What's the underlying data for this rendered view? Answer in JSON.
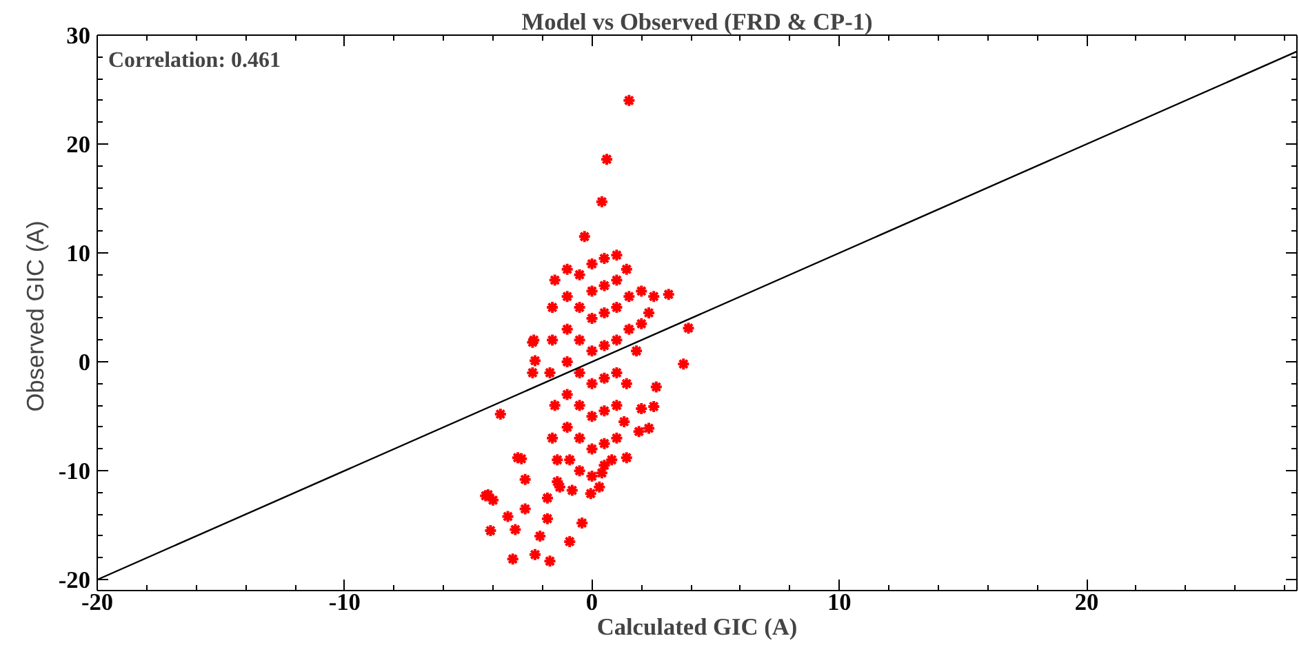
{
  "chart_data": {
    "type": "scatter",
    "title": "Model vs Observed (FRD & CP-1)",
    "xlabel": "Calculated GIC (A)",
    "ylabel": "Observed GIC  (A)",
    "annotations": [
      "Correlation: 0.461"
    ],
    "xlim": [
      -20,
      28.5
    ],
    "ylim": [
      -21,
      30
    ],
    "xticks": [
      -20,
      -10,
      0,
      10,
      20
    ],
    "yticks": [
      -20,
      -10,
      0,
      10,
      20,
      30
    ],
    "grid": false,
    "series": [
      {
        "color": "#ff0000",
        "marker": "cross",
        "x": [
          1.5,
          0.6,
          0.4,
          -0.3,
          3.1,
          3.9,
          3.7,
          2.6,
          2.5,
          2.0,
          2.3,
          1.9,
          1.4,
          0.4,
          0.3,
          -2.4,
          -2.3,
          -2.4,
          -3.7,
          -2.85,
          -2.7,
          -4.3,
          -4.0,
          -4.1,
          -3.4,
          -3.1,
          -2.7,
          -3.2,
          -2.1,
          -2.3,
          -1.7,
          -1.8,
          -1.4,
          -0.9,
          -0.4,
          -0.05,
          -3.0,
          -4.2,
          -2.35,
          -1.5,
          -1.6,
          -1.6,
          -1.7,
          -1.5,
          -1.6,
          -1.4,
          -1.3,
          -1.8,
          -1.0,
          -1.0,
          -1.0,
          -1.0,
          -1.0,
          -1.0,
          -0.9,
          -0.8,
          -0.5,
          -0.5,
          -0.5,
          -0.5,
          -0.5,
          -0.5,
          -0.5,
          0,
          0,
          0,
          0,
          0,
          0,
          0,
          0,
          0.5,
          0.5,
          0.5,
          0.5,
          0.5,
          0.5,
          0.5,
          0.5,
          1.0,
          1.0,
          1.0,
          1.0,
          1.0,
          1.0,
          1.0,
          0.8,
          1.4,
          1.5,
          1.5,
          1.4,
          1.3,
          2.0,
          2.5,
          2.3,
          2.0,
          1.8
        ],
        "values": [
          24.0,
          18.6,
          14.7,
          11.5,
          6.2,
          3.1,
          -0.2,
          -2.3,
          -4.1,
          -4.3,
          -6.1,
          -6.4,
          -8.8,
          -10.2,
          -11.5,
          1.8,
          0.1,
          -1.0,
          -4.8,
          -8.9,
          -10.8,
          -12.3,
          -12.7,
          -15.5,
          -14.2,
          -15.4,
          -13.5,
          -18.1,
          -16.0,
          -17.7,
          -18.3,
          -14.4,
          -11.0,
          -16.5,
          -14.8,
          -12.1,
          -8.8,
          -12.2,
          2.0,
          7.5,
          5,
          2,
          -1,
          -4,
          -7,
          -9,
          -11.5,
          -12.5,
          8.5,
          6,
          3,
          0,
          -3,
          -6,
          -9,
          -11.8,
          8,
          5,
          2,
          -1,
          -4,
          -7,
          -10,
          9,
          6.5,
          4,
          1,
          -2,
          -5,
          -8,
          -10.5,
          9.5,
          7,
          4.5,
          1.5,
          -1.5,
          -4.5,
          -7.5,
          -9.5,
          9.8,
          7.5,
          5,
          2,
          -1,
          -4,
          -7,
          -9,
          8.5,
          6,
          3,
          -2,
          -5.5,
          6.5,
          6,
          4.5,
          3.5,
          1
        ]
      },
      {
        "type": "line",
        "color": "#000000",
        "x": [
          -20,
          28.5
        ],
        "values": [
          -20,
          28.5
        ]
      }
    ]
  }
}
